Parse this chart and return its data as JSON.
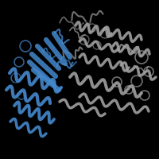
{
  "background_color": "#000000",
  "figsize": [
    2.0,
    2.0
  ],
  "dpi": 100,
  "gray_color": "#a0a0a0",
  "blue_color": "#4488cc",
  "dark_gray": "#707070",
  "light_gray": "#c0c0c0",
  "blue_dark": "#2266aa",
  "blue_light": "#66aadd"
}
